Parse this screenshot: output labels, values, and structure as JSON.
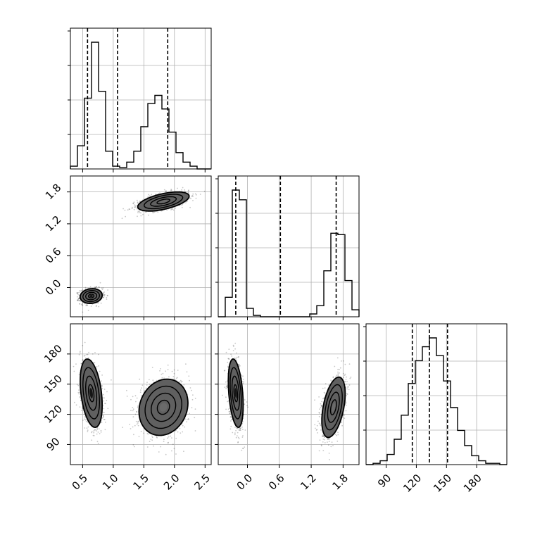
{
  "chart_data": {
    "type": "corner",
    "title": "",
    "parameters": [
      "",
      "",
      ""
    ],
    "ranges": [
      [
        0.3,
        2.6
      ],
      [
        -0.55,
        2.1
      ],
      [
        70,
        210
      ]
    ],
    "ticks": {
      "p0": {
        "values": [
          0.5,
          1.0,
          1.5,
          2.0,
          2.5
        ],
        "labels": [
          "0.5",
          "1.0",
          "1.5",
          "2.0",
          "2.5"
        ]
      },
      "p1": {
        "values": [
          0.0,
          0.6,
          1.2,
          1.8
        ],
        "labels": [
          "0.0",
          "0.6",
          "1.2",
          "1.8"
        ]
      },
      "p2": {
        "values": [
          90,
          120,
          150,
          180
        ],
        "labels": [
          "90",
          "120",
          "150",
          "180"
        ]
      }
    },
    "grid": true,
    "histograms": [
      {
        "param": "p0",
        "bin_edges": [
          0.3,
          0.415,
          0.53,
          0.645,
          0.76,
          0.875,
          0.99,
          1.105,
          1.22,
          1.335,
          1.45,
          1.565,
          1.68,
          1.795,
          1.91,
          2.025,
          2.14,
          2.255,
          2.37,
          2.485,
          2.6
        ],
        "counts": [
          0.02,
          0.17,
          0.52,
          0.93,
          0.57,
          0.13,
          0.02,
          0.01,
          0.05,
          0.13,
          0.31,
          0.48,
          0.54,
          0.44,
          0.27,
          0.12,
          0.05,
          0.02,
          0.0,
          0.0
        ],
        "quantiles": [
          0.58,
          1.07,
          1.89
        ]
      },
      {
        "param": "p1",
        "bin_edges": [
          -0.55,
          -0.4175,
          -0.285,
          -0.1525,
          -0.02,
          0.1125,
          0.245,
          0.3775,
          0.51,
          0.6425,
          0.775,
          0.9075,
          1.04,
          1.1725,
          1.305,
          1.4375,
          1.57,
          1.7025,
          1.835,
          1.9675,
          2.1
        ],
        "counts": [
          0.0,
          0.14,
          0.91,
          0.84,
          0.06,
          0.01,
          0.0,
          0.0,
          0.0,
          0.0,
          0.0,
          0.0,
          0.0,
          0.02,
          0.08,
          0.33,
          0.6,
          0.59,
          0.26,
          0.05
        ],
        "quantiles": [
          -0.22,
          0.62,
          1.67
        ]
      },
      {
        "param": "p2",
        "bin_edges": [
          70,
          77,
          84,
          91,
          98,
          105,
          112,
          119,
          126,
          133,
          140,
          147,
          154,
          161,
          168,
          175,
          182,
          189,
          196,
          203,
          210
        ],
        "counts": [
          0.0,
          0.01,
          0.03,
          0.08,
          0.2,
          0.39,
          0.64,
          0.82,
          0.93,
          1.0,
          0.86,
          0.66,
          0.45,
          0.27,
          0.15,
          0.07,
          0.03,
          0.01,
          0.01,
          0.0
        ],
        "quantiles": [
          116,
          133,
          151
        ]
      }
    ],
    "pairs": [
      {
        "x": "p0",
        "y": "p1",
        "modes": [
          {
            "cx": 0.64,
            "cy": -0.16,
            "sx": 0.09,
            "sy": 0.07,
            "rho": 0.1
          },
          {
            "cx": 1.82,
            "cy": 1.62,
            "sx": 0.21,
            "sy": 0.09,
            "rho": 0.55
          }
        ]
      },
      {
        "x": "p0",
        "y": "p2",
        "modes": [
          {
            "cx": 0.64,
            "cy": 141,
            "sx": 0.09,
            "sy": 17,
            "rho": -0.35
          },
          {
            "cx": 1.82,
            "cy": 127,
            "sx": 0.2,
            "sy": 14,
            "rho": 0.15
          }
        ]
      },
      {
        "x": "p1",
        "y": "p2",
        "modes": [
          {
            "cx": -0.22,
            "cy": 141,
            "sx": 0.07,
            "sy": 17,
            "rho": -0.35
          },
          {
            "cx": 1.62,
            "cy": 127,
            "sx": 0.11,
            "sy": 15,
            "rho": 0.45
          }
        ]
      }
    ],
    "contour_levels": [
      0.5,
      1.0,
      1.5,
      2.0
    ]
  }
}
